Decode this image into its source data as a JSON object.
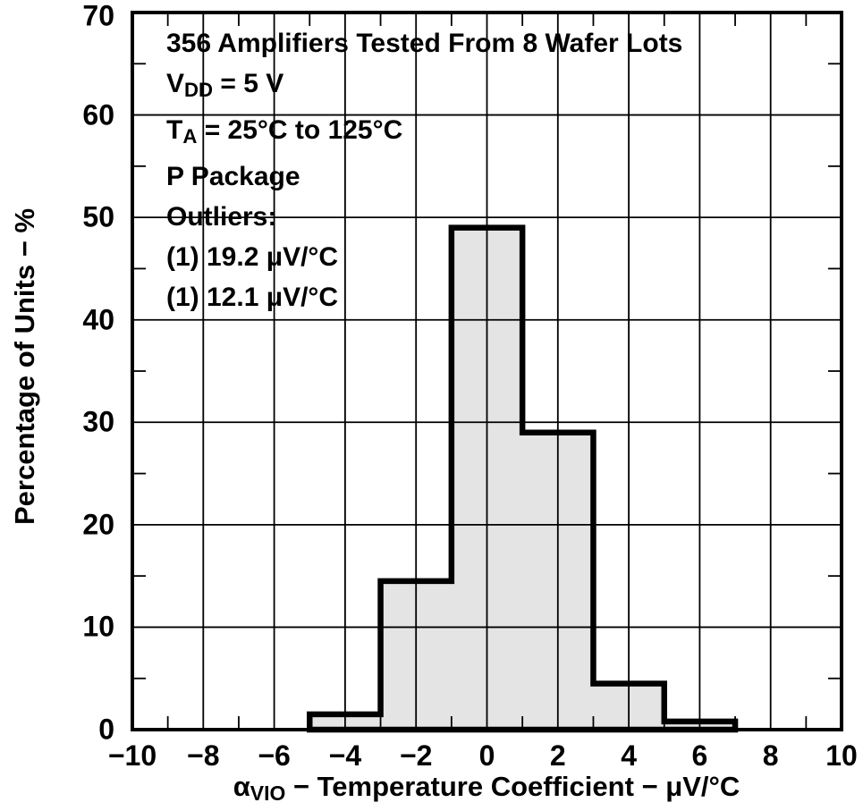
{
  "chart_data": {
    "type": "histogram",
    "title": "",
    "xlabel": "αVIO − Temperature Coefficient − μV/°C",
    "xlabel_segments": [
      {
        "t": "α",
        "sub": false
      },
      {
        "t": "VIO",
        "sub": true
      },
      {
        "t": " − Temperature Coefficient − μV/°C",
        "sub": false
      }
    ],
    "ylabel": "Percentage of Units − %",
    "xlim": [
      -10,
      10
    ],
    "ylim": [
      0,
      70
    ],
    "grid": true,
    "x_ticks": {
      "values": [
        -10,
        -8,
        -6,
        -4,
        -2,
        0,
        2,
        4,
        6,
        8,
        10
      ],
      "labels": [
        "−10",
        "−8",
        "−6",
        "−4",
        "−2",
        "0",
        "2",
        "4",
        "6",
        "8",
        "10"
      ]
    },
    "y_ticks": {
      "values": [
        0,
        10,
        20,
        30,
        40,
        50,
        60,
        70
      ],
      "labels": [
        "0",
        "10",
        "20",
        "30",
        "40",
        "50",
        "60",
        "70"
      ]
    },
    "x_minor_ticks": [
      -9,
      -7,
      -5,
      -3,
      -1,
      1,
      3,
      5,
      7,
      9
    ],
    "y_minor_ticks": [
      5,
      15,
      25,
      35,
      45,
      55,
      65
    ],
    "bin_edges": [
      -5,
      -3,
      -1,
      1,
      3,
      5,
      7
    ],
    "values": [
      1.5,
      14.5,
      49,
      29,
      4.5,
      0.8
    ],
    "annotation_lines": [
      [
        {
          "t": "356 Amplifiers Tested From 8 Wafer Lots",
          "sub": false
        }
      ],
      [
        {
          "t": "V",
          "sub": false
        },
        {
          "t": "DD",
          "sub": true
        },
        {
          "t": " = 5 V",
          "sub": false
        }
      ],
      [
        {
          "t": "T",
          "sub": false
        },
        {
          "t": "A",
          "sub": true
        },
        {
          "t": " = 25°C to 125°C",
          "sub": false
        }
      ],
      [
        {
          "t": "P Package",
          "sub": false
        }
      ],
      [
        {
          "t": "Outliers:",
          "sub": false
        }
      ],
      [
        {
          "t": "(1) 19.2 μV/°C",
          "sub": false
        }
      ],
      [
        {
          "t": "(1) 12.1 μV/°C",
          "sub": false
        }
      ]
    ],
    "fill_color": "#e4e4e4",
    "line_color": "#000000",
    "background_color": "#ffffff"
  }
}
